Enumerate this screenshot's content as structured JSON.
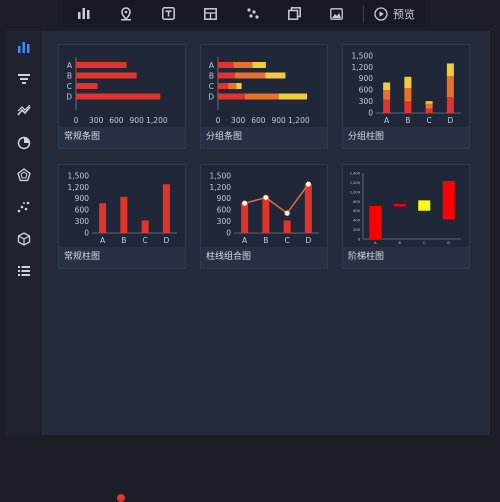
{
  "toolbar": {
    "icons": [
      "bar-chart-icon",
      "map-pin-icon",
      "text-icon",
      "table-icon",
      "scatter-icon",
      "layers-icon",
      "image-icon"
    ],
    "preview_label": "预览"
  },
  "sidebar": {
    "items": [
      "bar-chart",
      "funnel",
      "line-chart",
      "pie-chart",
      "radar",
      "scatter",
      "cube",
      "list"
    ]
  },
  "colors": {
    "red": "#e0342c",
    "orange": "#e8722a",
    "yellow": "#f2cd3b",
    "line": "#e8723a",
    "tick": "#c7ccd6"
  },
  "cards": [
    {
      "label": "常规条图",
      "chart_data": {
        "type": "bar",
        "orientation": "horizontal",
        "categories": [
          "A",
          "B",
          "C",
          "D"
        ],
        "values": [
          750,
          900,
          320,
          1250
        ],
        "xlim": [
          0,
          1350
        ],
        "xticks": [
          "0",
          "300",
          "600",
          "900",
          "1,200"
        ]
      }
    },
    {
      "label": "分组条图",
      "chart_data": {
        "type": "bar",
        "orientation": "horizontal",
        "stacked": true,
        "categories": [
          "A",
          "B",
          "C",
          "D"
        ],
        "series": [
          {
            "values": [
              230,
              250,
              150,
              400
            ]
          },
          {
            "values": [
              280,
              450,
              120,
              500
            ]
          },
          {
            "values": [
              200,
              300,
              80,
              420
            ]
          }
        ],
        "xlim": [
          0,
          1350
        ],
        "xticks": [
          "0",
          "300",
          "600",
          "900",
          "1,200"
        ]
      }
    },
    {
      "label": "分组柱图",
      "chart_data": {
        "type": "bar",
        "stacked": true,
        "categories": [
          "A",
          "B",
          "C",
          "D"
        ],
        "series": [
          {
            "values": [
              350,
              300,
              120,
              420
            ]
          },
          {
            "values": [
              250,
              350,
              120,
              550
            ]
          },
          {
            "values": [
              200,
              300,
              70,
              330
            ]
          }
        ],
        "ylim": [
          0,
          1600
        ],
        "yticks": [
          "0",
          "300",
          "600",
          "900",
          "1,200",
          "1,500"
        ]
      }
    },
    {
      "label": "常规柱图",
      "chart_data": {
        "type": "bar",
        "categories": [
          "A",
          "B",
          "C",
          "D"
        ],
        "values": [
          780,
          950,
          330,
          1280
        ],
        "ylim": [
          0,
          1600
        ],
        "yticks": [
          "0",
          "300",
          "600",
          "900",
          "1,200",
          "1,500"
        ]
      }
    },
    {
      "label": "柱线组合图",
      "chart_data": {
        "type": "bar+line",
        "categories": [
          "A",
          "B",
          "C",
          "D"
        ],
        "values": [
          780,
          950,
          330,
          1280
        ],
        "line": [
          780,
          930,
          520,
          1280
        ],
        "ylim": [
          0,
          1600
        ],
        "yticks": [
          "0",
          "300",
          "600",
          "900",
          "1,200",
          "1,500"
        ]
      }
    },
    {
      "label": "阶梯柱图",
      "chart_data": {
        "type": "waterfall",
        "categories": [
          "A",
          "B",
          "C",
          "D"
        ],
        "values": [
          [
            0,
            700
          ],
          [
            690,
            740
          ],
          [
            600,
            820
          ],
          [
            420,
            1230
          ]
        ],
        "colors": [
          "#ff0000",
          "#ff0000",
          "#ffff00",
          "#ff0000"
        ],
        "ylim": [
          0,
          1400
        ],
        "yticks": [
          "0",
          "200",
          "400",
          "600",
          "800",
          "1,000",
          "1,200",
          "1,400"
        ]
      }
    }
  ]
}
